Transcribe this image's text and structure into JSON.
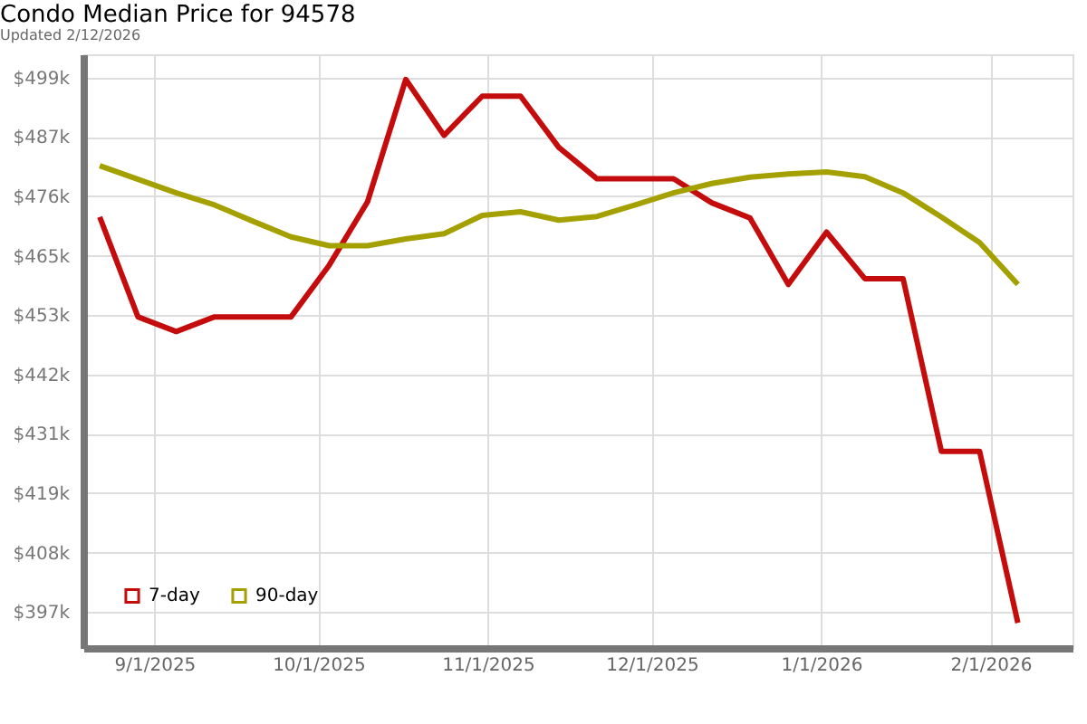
{
  "chart_data": {
    "type": "line",
    "title": "Condo Median Price for 94578",
    "subtitle": "Updated 2/12/2026",
    "x": [
      "2025-08-22",
      "2025-08-29",
      "2025-09-05",
      "2025-09-12",
      "2025-09-19",
      "2025-09-26",
      "2025-10-03",
      "2025-10-10",
      "2025-10-17",
      "2025-10-24",
      "2025-10-31",
      "2025-11-07",
      "2025-11-14",
      "2025-11-21",
      "2025-11-28",
      "2025-12-05",
      "2025-12-12",
      "2025-12-19",
      "2025-12-26",
      "2026-01-02",
      "2026-01-09",
      "2026-01-16",
      "2026-01-23",
      "2026-01-30",
      "2026-02-06"
    ],
    "series": [
      {
        "name": "7-day",
        "color": "#c40c0c",
        "values": [
          472100,
          453000,
          450200,
          453000,
          453000,
          453000,
          462900,
          475000,
          498400,
          487700,
          495200,
          495200,
          485400,
          479400,
          479400,
          479400,
          474800,
          471900,
          459200,
          469200,
          460300,
          460300,
          427300,
          427300,
          394500
        ]
      },
      {
        "name": "90-day",
        "color": "#a3a000",
        "values": [
          481900,
          479300,
          476700,
          474400,
          471300,
          468300,
          466600,
          466600,
          467900,
          468900,
          472400,
          473100,
          471500,
          472200,
          474400,
          476700,
          478500,
          479700,
          480300,
          480700,
          479800,
          476700,
          472100,
          467200,
          459200
        ]
      }
    ],
    "xlim": [
      "2025-08-19",
      "2026-02-16"
    ],
    "xticks": [
      {
        "value": "2025-09-01",
        "label": "9/1/2025"
      },
      {
        "value": "2025-10-01",
        "label": "10/1/2025"
      },
      {
        "value": "2025-11-01",
        "label": "11/1/2025"
      },
      {
        "value": "2025-12-01",
        "label": "12/1/2025"
      },
      {
        "value": "2026-01-01",
        "label": "1/1/2026"
      },
      {
        "value": "2026-02-01",
        "label": "2/1/2026"
      }
    ],
    "ylim": [
      389700,
      503200
    ],
    "yticks": [
      {
        "value": 396600,
        "label": "$397k"
      },
      {
        "value": 407950,
        "label": "$408k"
      },
      {
        "value": 419300,
        "label": "$419k"
      },
      {
        "value": 430650,
        "label": "$431k"
      },
      {
        "value": 442000,
        "label": "$442k"
      },
      {
        "value": 453350,
        "label": "$453k"
      },
      {
        "value": 464700,
        "label": "$465k"
      },
      {
        "value": 476050,
        "label": "$476k"
      },
      {
        "value": 487400,
        "label": "$487k"
      },
      {
        "value": 498750,
        "label": "$499k"
      }
    ],
    "grid": true,
    "legend": "bottom left",
    "marker": "none",
    "line_style": "solid"
  }
}
